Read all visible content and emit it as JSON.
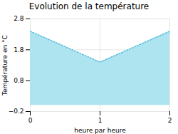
{
  "chart_data": {
    "type": "area",
    "title": "Evolution de la température",
    "xlabel": "heure par heure",
    "ylabel": "Température en °C",
    "x": [
      0,
      1,
      2
    ],
    "series": [
      {
        "type": "area",
        "color": "#aee4f0",
        "values": [
          2.4,
          1.4,
          2.4
        ]
      },
      {
        "type": "line",
        "color": "#55bbdd",
        "line_style": "dotted",
        "values": [
          2.4,
          1.4,
          2.4
        ]
      }
    ],
    "xlim": [
      0,
      2
    ],
    "xticks": [
      0,
      1,
      2
    ],
    "ylim": [
      -0.2,
      2.8
    ],
    "yticks": [
      -0.2,
      0.8,
      1.8,
      2.8
    ],
    "grid": true
  }
}
